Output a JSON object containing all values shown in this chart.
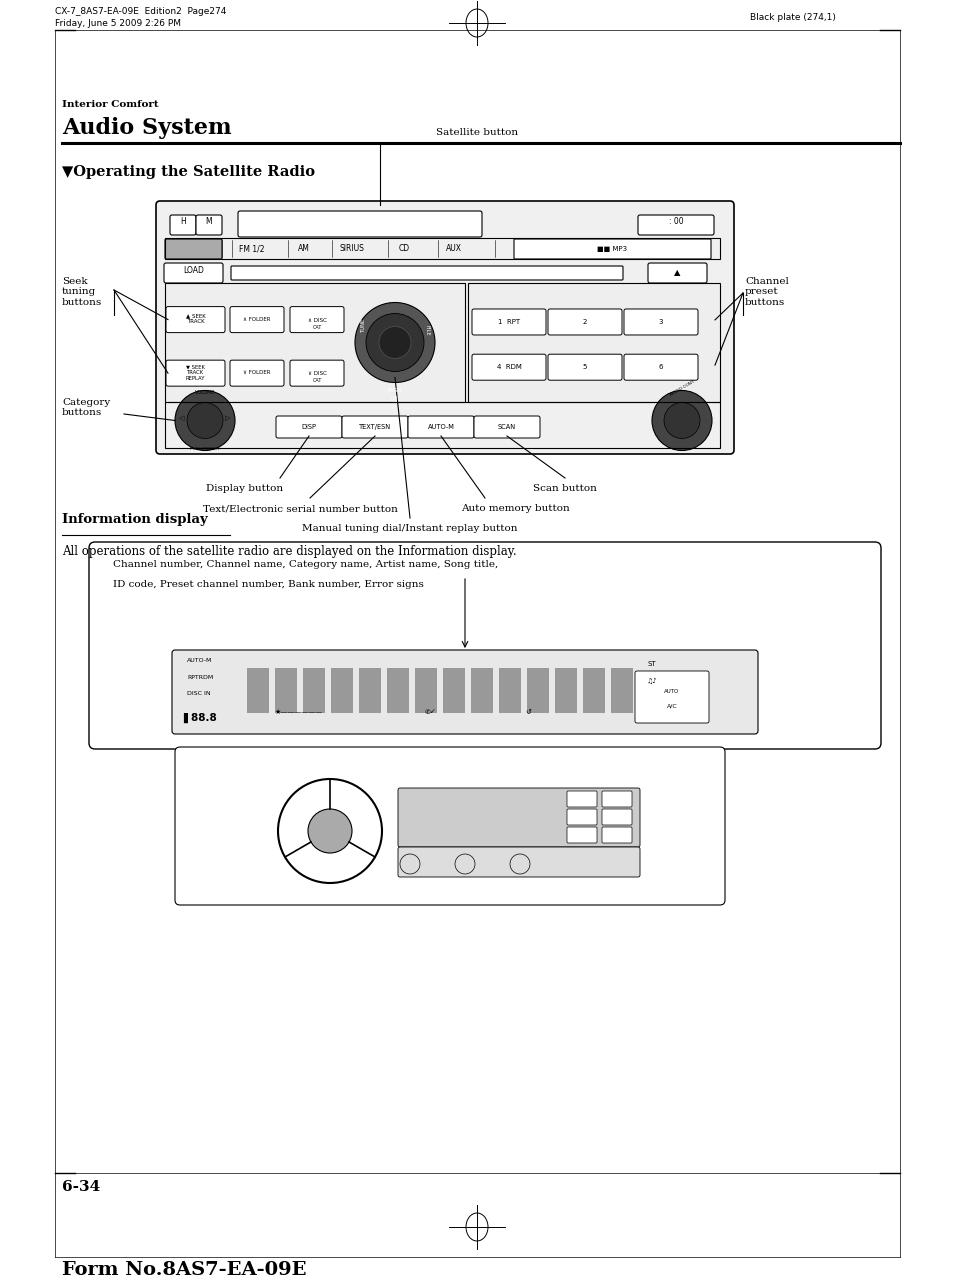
{
  "bg_color": "#ffffff",
  "page_width": 9.54,
  "page_height": 12.85,
  "header_line1": "CX-7_8AS7-EA-09E  Edition2  Page274",
  "header_line2": "Friday, June 5 2009 2:26 PM",
  "header_right": "Black plate (274,1)",
  "section_label": "Interior Comfort",
  "section_title": "Audio System",
  "subsection_title": "▼Operating the Satellite Radio",
  "info_display_heading": "Information display",
  "info_display_text": "All operations of the satellite radio are displayed on the Information display.",
  "info_box_text_line1": "Channel number, Channel name, Category name, Artist name, Song title,",
  "info_box_text_line2": "ID code, Preset channel number, Bank number, Error signs",
  "page_number": "6-34",
  "form_number": "Form No.8AS7-EA-09E",
  "callout_satellite_button": "Satellite button",
  "callout_seek_tuning": "Seek\ntuning\nbuttons",
  "callout_category": "Category\nbuttons",
  "callout_channel_preset": "Channel\npreset\nbuttons",
  "callout_display": "Display button",
  "callout_scan": "Scan button",
  "callout_text_esn": "Text/Electronic serial number button",
  "callout_auto_memory": "Auto memory button",
  "callout_manual_tuning": "Manual tuning dial/Instant replay button"
}
